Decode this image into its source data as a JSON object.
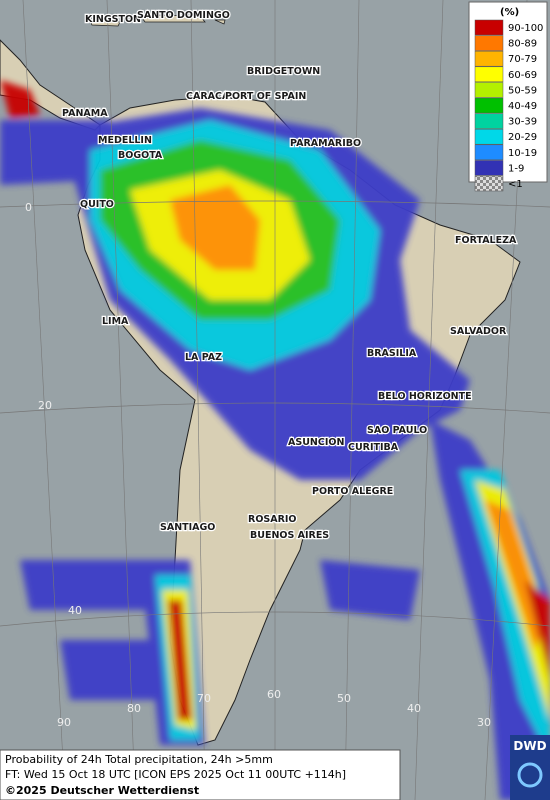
{
  "legend": {
    "unit": "(%)",
    "items": [
      {
        "label": "90-100",
        "color": "#c80000"
      },
      {
        "label": "80-89",
        "color": "#ff7800"
      },
      {
        "label": "70-79",
        "color": "#ffb400"
      },
      {
        "label": "60-69",
        "color": "#ffff00"
      },
      {
        "label": "50-59",
        "color": "#b4f000"
      },
      {
        "label": "40-49",
        "color": "#00c000"
      },
      {
        "label": "30-39",
        "color": "#00d2a0"
      },
      {
        "label": "20-29",
        "color": "#00d8e8"
      },
      {
        "label": "10-19",
        "color": "#1e8cff"
      },
      {
        "label": "1-9",
        "color": "#3232b4"
      },
      {
        "label": "<1",
        "color": "checker"
      }
    ]
  },
  "cities": [
    "KINGSTON",
    "SANTO DOMINGO",
    "BRIDGETOWN",
    "CARACAS",
    "PORT OF SPAIN",
    "PANAMA",
    "MEDELLIN",
    "BOGOTA",
    "PARAMARIBO",
    "QUITO",
    "FORTALEZA",
    "LIMA",
    "SALVADOR",
    "LA PAZ",
    "BRASILIA",
    "BELO HORIZONTE",
    "SAO PAULO",
    "ASUNCION",
    "CURITIBA",
    "PORTO ALEGRE",
    "SANTIAGO",
    "ROSARIO",
    "BUENOS AIRES"
  ],
  "lat_labels": [
    "0",
    "20",
    "40"
  ],
  "lon_labels": [
    "90",
    "80",
    "70",
    "60",
    "50",
    "40",
    "30"
  ],
  "footer": {
    "line1": "Probability of 24h Total precipitation, 24h >5mm",
    "line2": "FT: Wed 15 Oct 18 UTC [ICON EPS 2025 Oct 11 00UTC +114h]",
    "line3": "©2025 Deutscher Wetterdienst"
  },
  "logo": "DWD"
}
